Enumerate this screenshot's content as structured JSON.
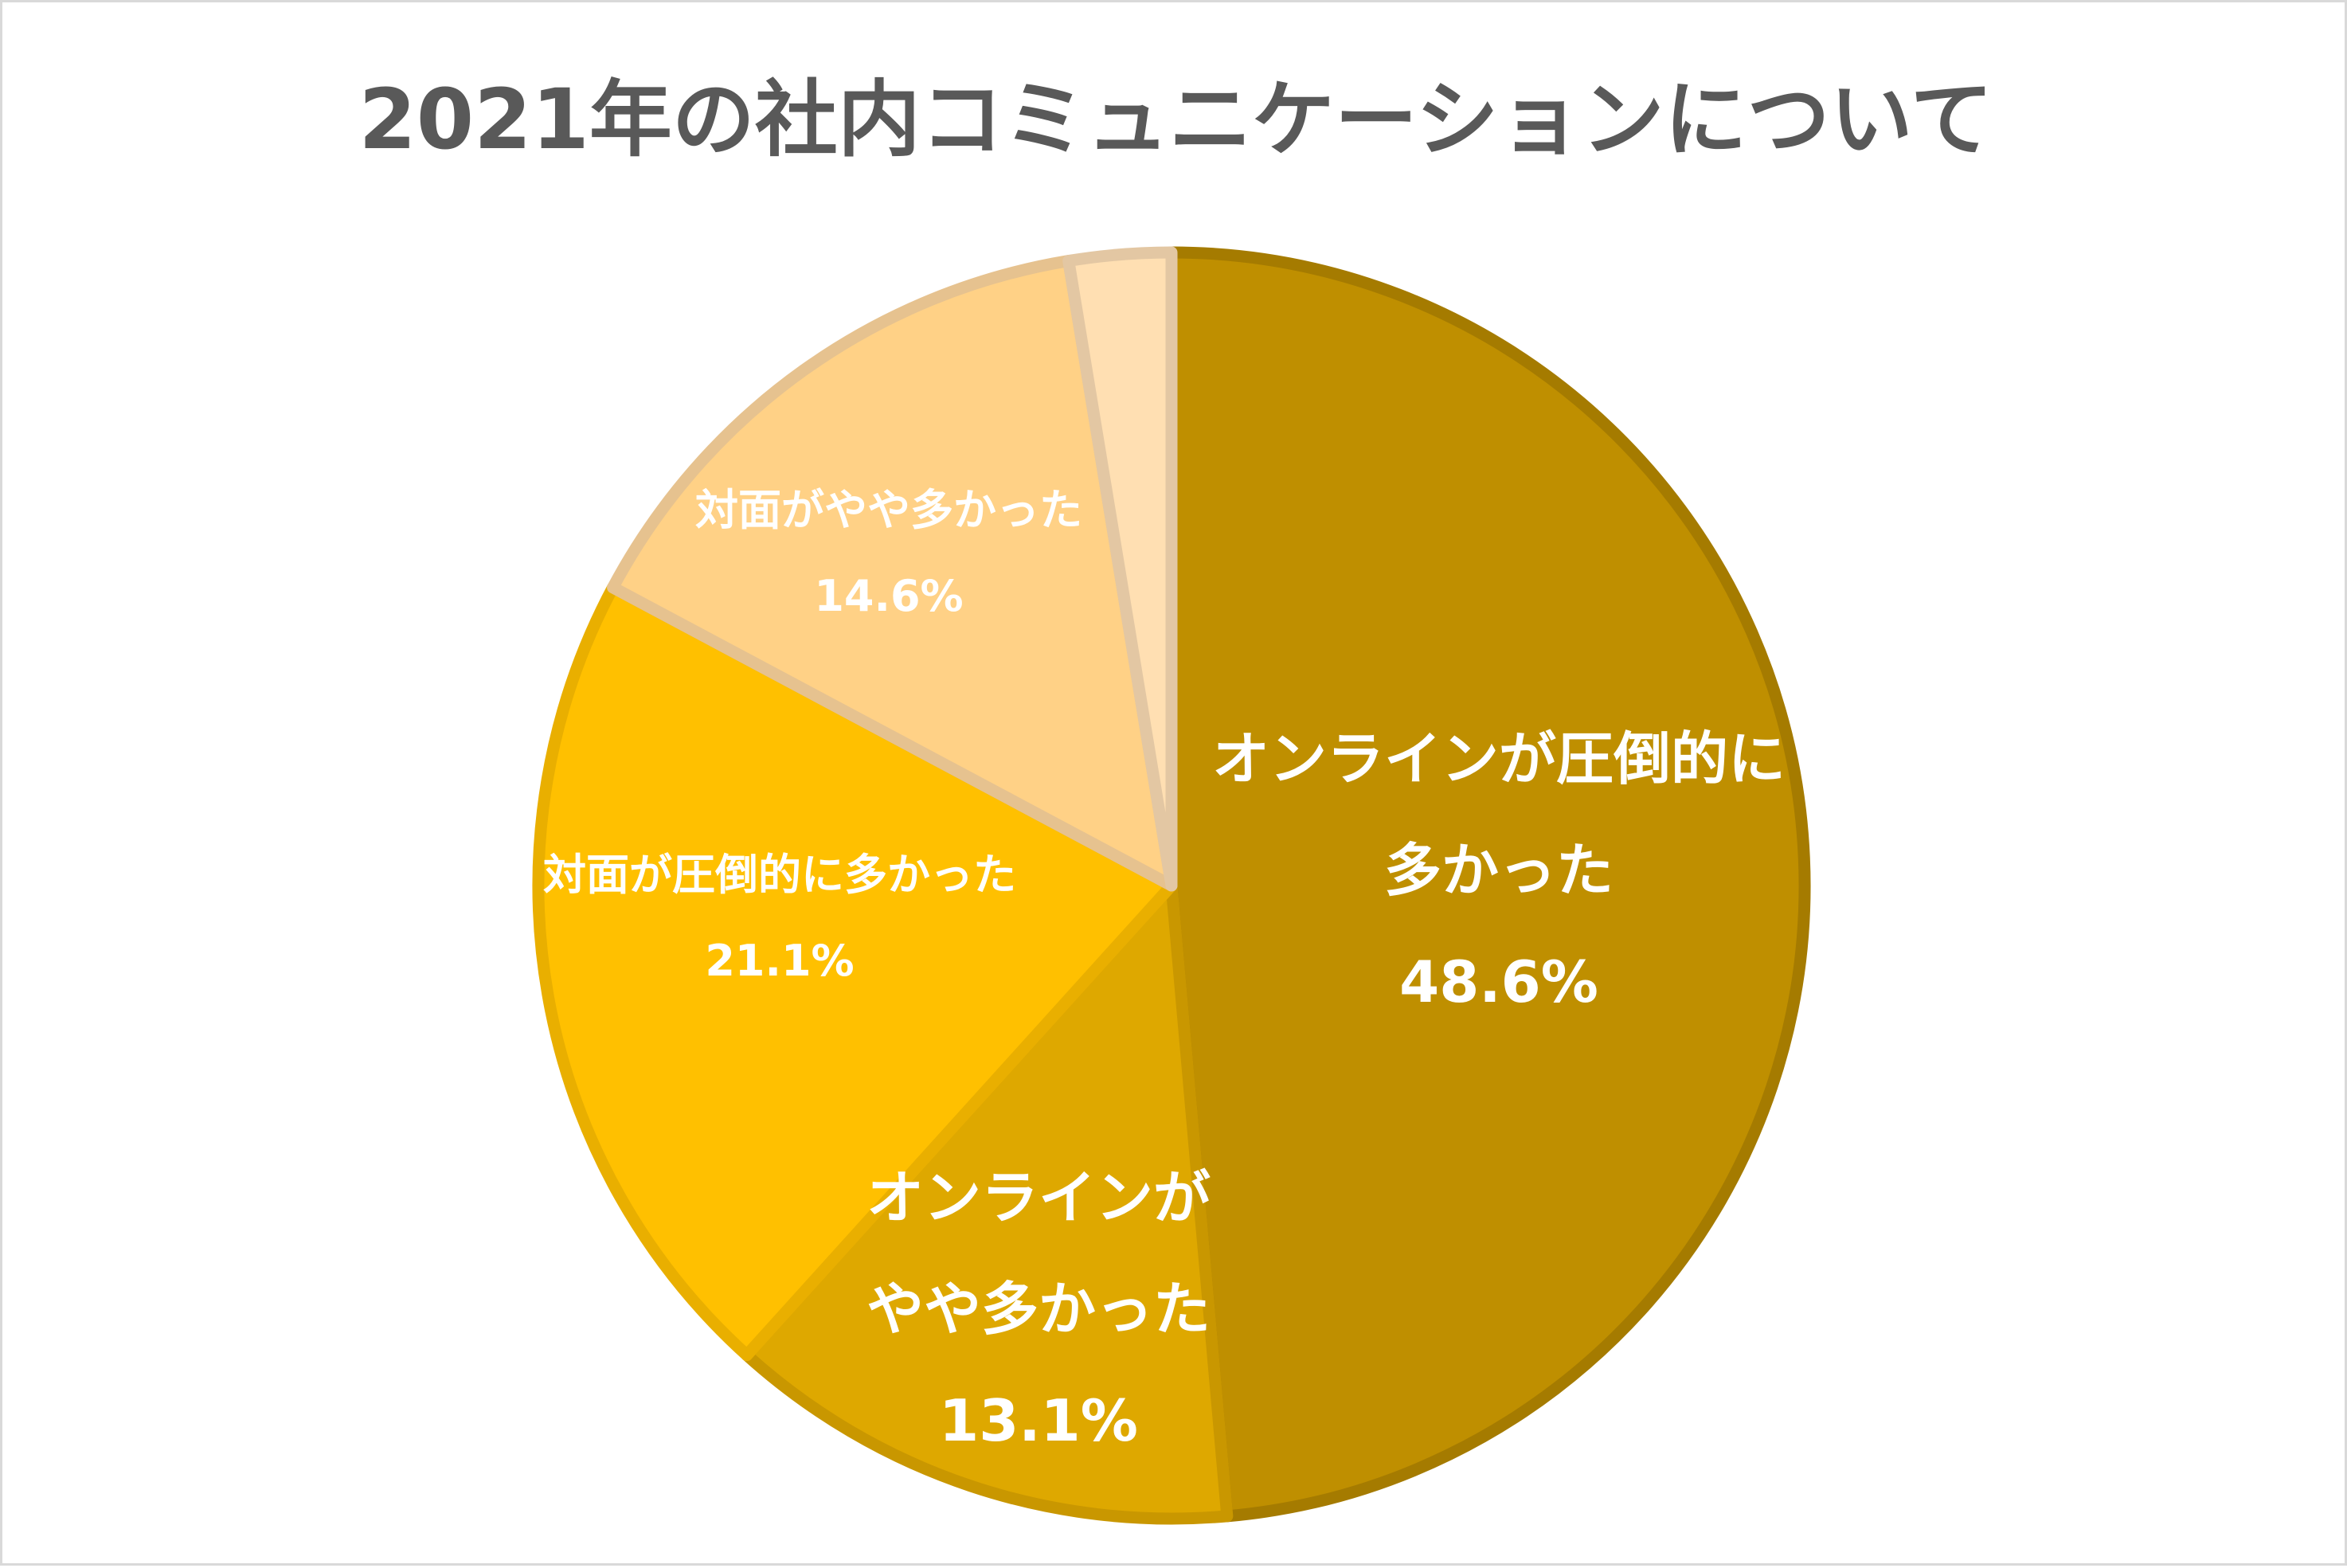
{
  "chart_data": {
    "type": "pie",
    "title": "2021年の社内コミュニケーションについて",
    "categories": [
      "オンラインが圧倒的に\n多かった",
      "オンラインが\nやや多かった",
      "対面が圧倒的に多かった",
      "対面がやや多かった",
      ""
    ],
    "values": [
      48.6,
      13.1,
      21.1,
      14.6,
      2.6
    ],
    "data_labels": [
      "48.6%",
      "13.1%",
      "21.1%",
      "14.6%",
      ""
    ],
    "colors": [
      "#BF8F00",
      "#DEA800",
      "#FFC000",
      "#FFD186",
      "#FFDFB2"
    ],
    "border_colors": [
      "#A57B00",
      "#C99700",
      "#E9AF00",
      "#E6C28F",
      "#E3C7A3"
    ],
    "direction": "clockwise",
    "legend": "none"
  }
}
